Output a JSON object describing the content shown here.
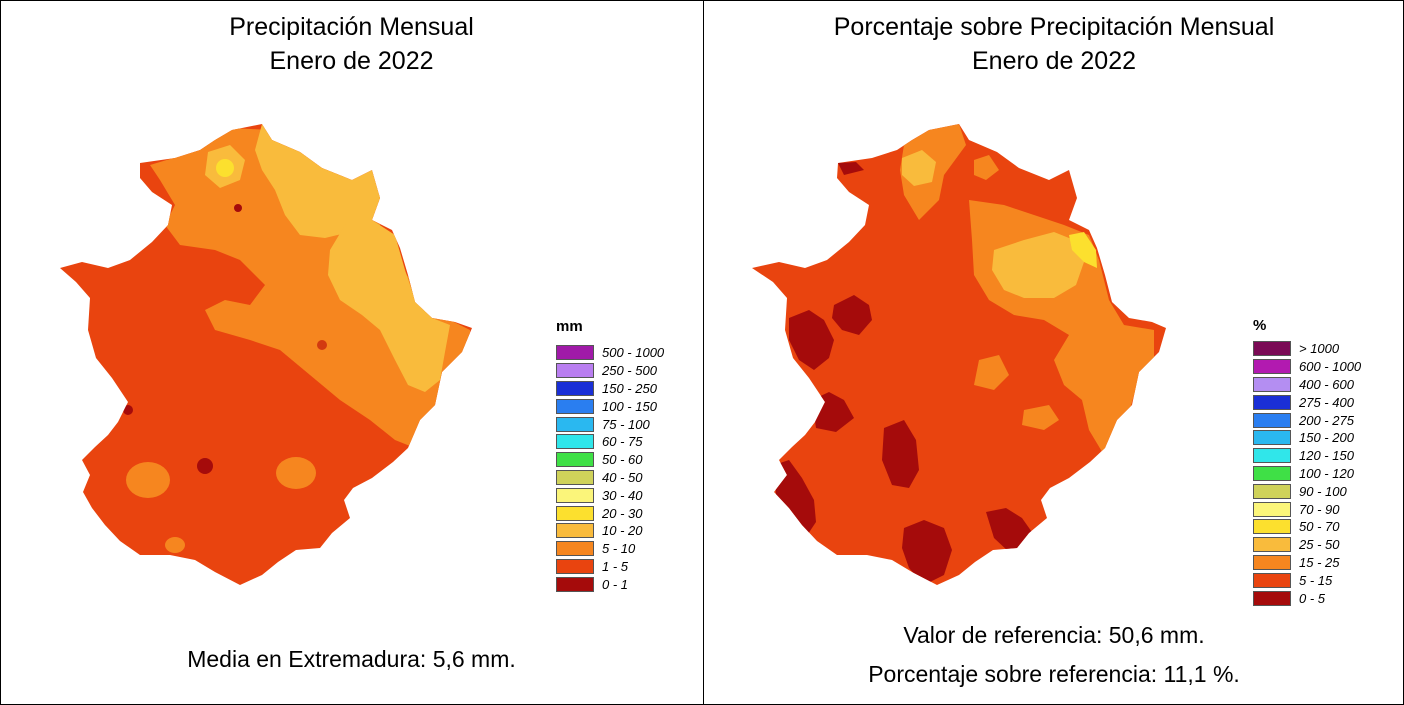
{
  "left_panel": {
    "title_line1": "Precipitación Mensual",
    "title_line2": "Enero de 2022",
    "legend_unit": "mm",
    "legend": [
      {
        "label": "500 - 1000",
        "color": "#a01aa8"
      },
      {
        "label": "250 - 500",
        "color": "#b97ef0"
      },
      {
        "label": "150 - 250",
        "color": "#1a2fd6"
      },
      {
        "label": "100 - 150",
        "color": "#2a7ef0"
      },
      {
        "label": "75 - 100",
        "color": "#2ab8f0"
      },
      {
        "label": "60 - 75",
        "color": "#30e6ea"
      },
      {
        "label": "50 - 60",
        "color": "#3fe046"
      },
      {
        "label": "40 - 50",
        "color": "#cfd25a"
      },
      {
        "label": "30 - 40",
        "color": "#fbf57a"
      },
      {
        "label": "20 - 30",
        "color": "#fce02e"
      },
      {
        "label": "10 - 20",
        "color": "#f9bb3c"
      },
      {
        "label": "5 - 10",
        "color": "#f6861f"
      },
      {
        "label": "1 - 5",
        "color": "#e9440f"
      },
      {
        "label": "0 - 1",
        "color": "#a50b0b"
      }
    ],
    "footer": "Media en Extremadura: 5,6 mm."
  },
  "right_panel": {
    "title_line1": "Porcentaje sobre Precipitación Mensual",
    "title_line2": "Enero de 2022",
    "legend_unit": "%",
    "legend": [
      {
        "label": "> 1000",
        "color": "#7a0a55"
      },
      {
        "label": "600 - 1000",
        "color": "#b21ab0"
      },
      {
        "label": "400 - 600",
        "color": "#b48ef2"
      },
      {
        "label": "275 - 400",
        "color": "#1a2fd6"
      },
      {
        "label": "200 - 275",
        "color": "#2a7ef0"
      },
      {
        "label": "150 - 200",
        "color": "#2ab8f0"
      },
      {
        "label": "120 - 150",
        "color": "#30e6ea"
      },
      {
        "label": "100 - 120",
        "color": "#3fe046"
      },
      {
        "label": "90 - 100",
        "color": "#cfd25a"
      },
      {
        "label": "70 - 90",
        "color": "#fbf57a"
      },
      {
        "label": "50 - 70",
        "color": "#fce02e"
      },
      {
        "label": "25 - 50",
        "color": "#f9bb3c"
      },
      {
        "label": "15 - 25",
        "color": "#f6861f"
      },
      {
        "label": "5 - 15",
        "color": "#e9440f"
      },
      {
        "label": "0 - 5",
        "color": "#a50b0b"
      }
    ],
    "footer_line1": "Valor de referencia: 50,6 mm.",
    "footer_line2": "Porcentaje sobre referencia: 11,1 %."
  }
}
